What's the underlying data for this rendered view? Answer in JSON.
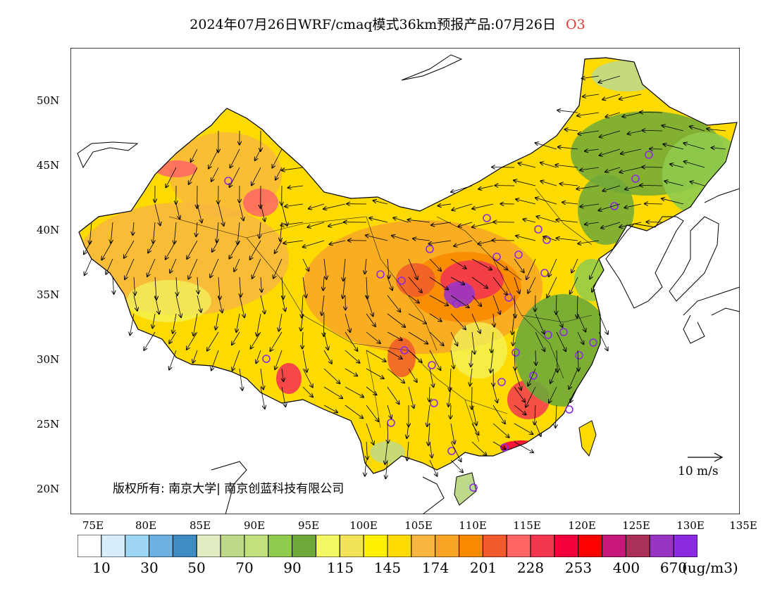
{
  "header": {
    "title": "2024年07月26日WRF/cmaq模式36km预报产品:07月26日",
    "pollutant": "O3"
  },
  "map": {
    "lat_labels": [
      "50N",
      "45N",
      "40N",
      "35N",
      "30N",
      "25N",
      "20N"
    ],
    "lon_labels": [
      "75E",
      "80E",
      "85E",
      "90E",
      "95E",
      "100E",
      "105E",
      "110E",
      "115E",
      "120E",
      "125E",
      "130E",
      "135E"
    ],
    "copyright": "版权所有: 南京大学| 南京创蓝科技有限公司",
    "wind_reference": "10 m/s"
  },
  "colorbar": {
    "unit": "(ug/m3)",
    "labels": [
      "10",
      "30",
      "50",
      "70",
      "90",
      "115",
      "145",
      "174",
      "201",
      "228",
      "253",
      "400",
      "670"
    ],
    "colors": [
      "#ffffff",
      "#d6eefb",
      "#9fd6f4",
      "#6cb1e0",
      "#3f8bc2",
      "#deebc3",
      "#bfd98a",
      "#c2e07e",
      "#8fcb4f",
      "#6ea83a",
      "#f2f763",
      "#f1e45b",
      "#fff100",
      "#fddb00",
      "#f8b640",
      "#f8a526",
      "#f98a00",
      "#ef5b2b",
      "#ff6666",
      "#f4364f",
      "#f5003b",
      "#ff0000",
      "#c8177b",
      "#a8305a",
      "#9a34c4",
      "#8a2be2"
    ]
  }
}
